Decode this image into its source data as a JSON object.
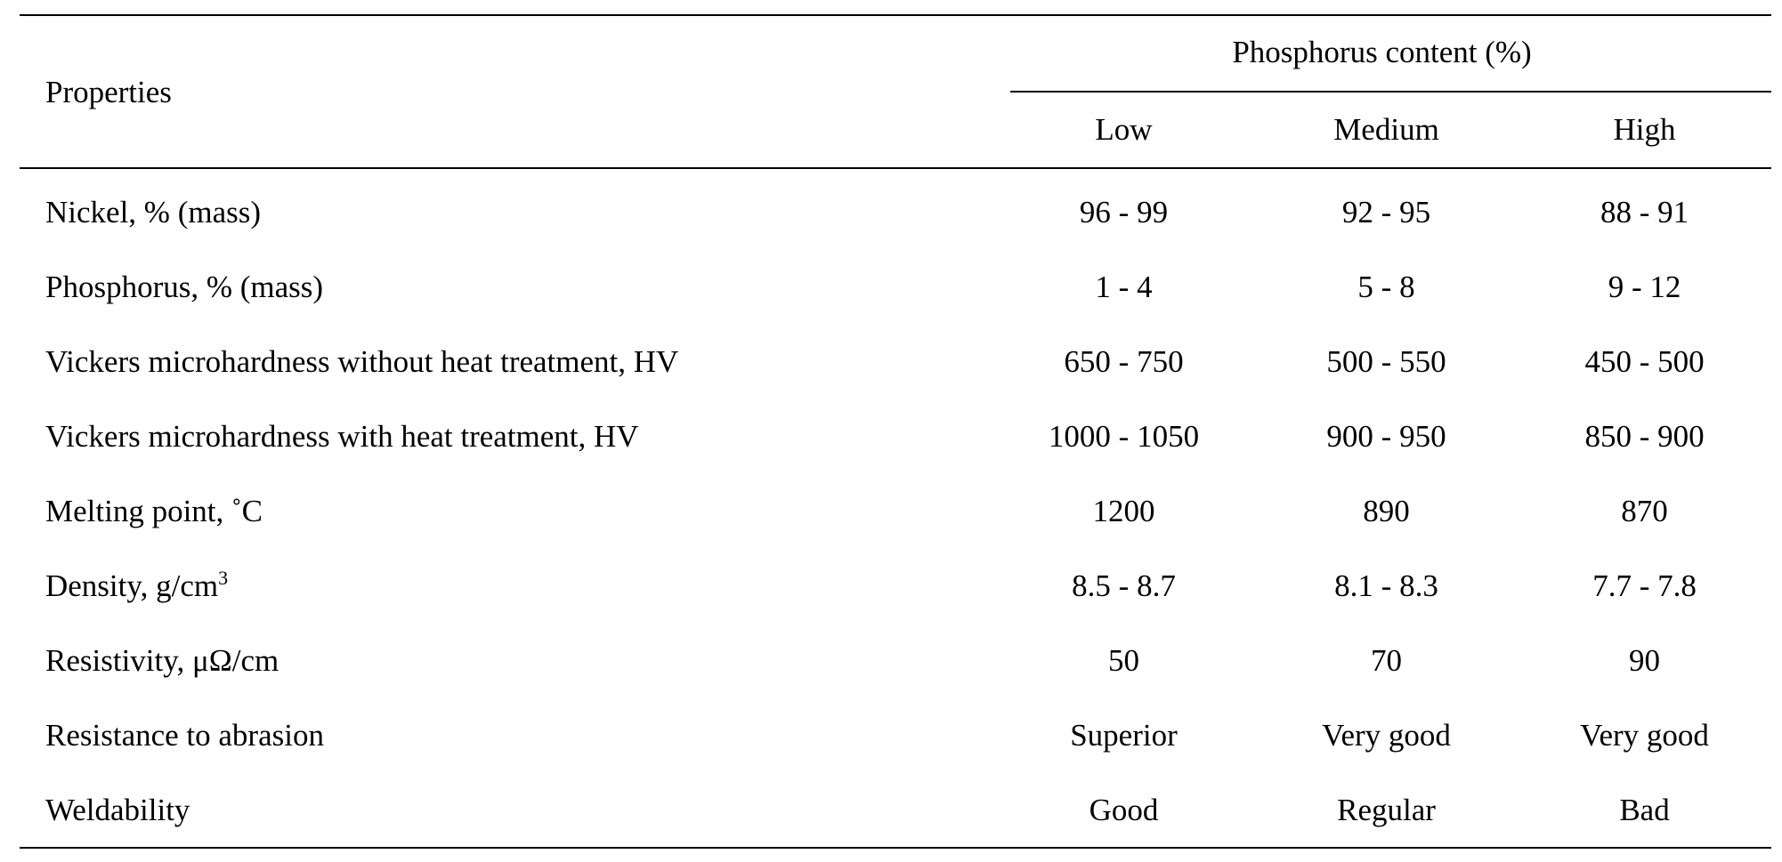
{
  "table": {
    "properties_header": "Properties",
    "group_header": "Phosphorus content (%)",
    "columns": [
      "Low",
      "Medium",
      "High"
    ],
    "rows": [
      {
        "label": "Nickel, % (mass)",
        "sup": "",
        "values": [
          "96 - 99",
          "92 - 95",
          "88 - 91"
        ]
      },
      {
        "label": "Phosphorus, % (mass)",
        "sup": "",
        "values": [
          "1 - 4",
          "5 - 8",
          "9 - 12"
        ]
      },
      {
        "label": "Vickers microhardness without heat treatment, HV",
        "sup": "",
        "values": [
          "650 - 750",
          "500 - 550",
          "450 - 500"
        ]
      },
      {
        "label": "Vickers microhardness with heat treatment, HV",
        "sup": "",
        "values": [
          "1000 - 1050",
          "900 - 950",
          "850 - 900"
        ]
      },
      {
        "label": "Melting point, ˚C",
        "sup": "",
        "values": [
          "1200",
          "890",
          "870"
        ]
      },
      {
        "label": "Density, g/cm",
        "sup": "3",
        "values": [
          "8.5 - 8.7",
          "8.1 - 8.3",
          "7.7 - 7.8"
        ]
      },
      {
        "label": "Resistivity, μΩ/cm",
        "sup": "",
        "values": [
          "50",
          "70",
          "90"
        ]
      },
      {
        "label": "Resistance to abrasion",
        "sup": "",
        "values": [
          "Superior",
          "Very good",
          "Very good"
        ]
      },
      {
        "label": "Weldability",
        "sup": "",
        "values": [
          "Good",
          "Regular",
          "Bad"
        ]
      }
    ]
  }
}
